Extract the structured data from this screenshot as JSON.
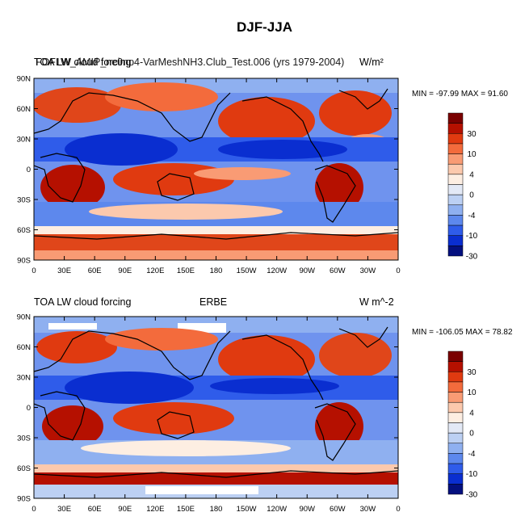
{
  "title": "DJF-JJA",
  "panels": [
    {
      "left_title_a": "TOA LW cloud forcing",
      "left_title_b": "FOFLW_AMIP_ne0np4-VarMeshNH3.Club_Test.006 (yrs 1979-2004)",
      "center_title": "",
      "units": "W/m²",
      "min_max": "MIN = -97.99 MAX =  91.60",
      "colorbar_labels": [
        "30",
        "10",
        "4",
        "0",
        "-4",
        "-10",
        "-30"
      ]
    },
    {
      "left_title_a": "TOA LW cloud forcing",
      "left_title_b": "",
      "center_title": "ERBE",
      "units": "W m^-2",
      "min_max": "MIN = -106.05 MAX =  78.82",
      "colorbar_labels": [
        "30",
        "10",
        "4",
        "0",
        "-4",
        "-10",
        "-30"
      ]
    }
  ],
  "x_ticks": [
    "0",
    "30E",
    "60E",
    "90E",
    "120E",
    "150E",
    "180",
    "150W",
    "120W",
    "90W",
    "60W",
    "30W",
    "0"
  ],
  "y_ticks": [
    "90N",
    "60N",
    "30N",
    "0",
    "30S",
    "60S",
    "90S"
  ],
  "colorbar_colors": [
    "#7a0000",
    "#b51000",
    "#e03a10",
    "#f36b3c",
    "#f99b74",
    "#fcc9ad",
    "#fdeee2",
    "#e3e9f6",
    "#bcd0f3",
    "#8fb0f0",
    "#5d88ed",
    "#2f5cea",
    "#0a2ed0",
    "#04107f"
  ],
  "map_colors": {
    "ocean_bg": "#6f93ee",
    "deep_red": "#b41a00",
    "red": "#e0461a",
    "light_red": "#f5a07a",
    "white": "#f4f0ee",
    "light_blue": "#b9ccf3",
    "deep_blue": "#2346d8",
    "coast": "#000000"
  }
}
